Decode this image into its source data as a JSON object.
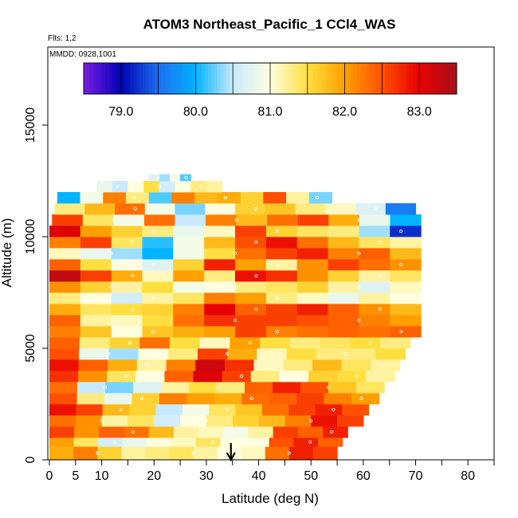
{
  "chart_data": {
    "type": "heatmap",
    "title": "ATOM3 Northeast_Pacific_1 CCl4_WAS",
    "flights_label": "Flts: 1,2",
    "dates_label": "MMDD: 0928,1001",
    "xlabel": "Latitude (deg N)",
    "ylabel": "Altitude (m)",
    "xlim": [
      -0.3,
      85
    ],
    "ylim": [
      0,
      18500
    ],
    "x_ticks": [
      0,
      5,
      10,
      20,
      30,
      40,
      50,
      60,
      70,
      80
    ],
    "x_minor_ticks": [
      15,
      25,
      35,
      45,
      55,
      65,
      75,
      85
    ],
    "y_ticks": [
      0,
      5000,
      10000,
      15000
    ],
    "colorbar": {
      "min": 78.5,
      "max": 83.5,
      "ticks": [
        79.0,
        80.0,
        81.0,
        82.0,
        83.0
      ],
      "boundaries": [
        79.5,
        80.5,
        81.5,
        82.5
      ],
      "colors": [
        "#7a1fe6",
        "#0000b4",
        "#1e6ef0",
        "#00b4ff",
        "#c8eaff",
        "#ffffe0",
        "#ffdf40",
        "#ffa000",
        "#ff5000",
        "#e80000",
        "#a8111e"
      ]
    },
    "bands": [
      {
        "alt": [
          0,
          600
        ],
        "lat": [
          0,
          55
        ],
        "values": [
          81.9,
          82.2,
          81.6,
          81.2,
          81.3,
          81.4,
          81.2,
          81.0,
          81.1,
          82.3,
          82.8,
          82.6
        ]
      },
      {
        "alt": [
          600,
          1000
        ],
        "lat": [
          0,
          56
        ],
        "values": [
          82.0,
          81.4,
          80.6,
          80.8,
          81.0,
          81.1,
          81.4,
          81.0,
          81.0,
          82.5,
          82.8,
          82.4
        ]
      },
      {
        "alt": [
          1000,
          1500
        ],
        "lat": [
          0,
          57
        ],
        "values": [
          82.6,
          82.1,
          82.4,
          82.3,
          81.8,
          81.2,
          81.1,
          80.9,
          81.2,
          82.6,
          82.4,
          82.8
        ]
      },
      {
        "alt": [
          1500,
          2000
        ],
        "lat": [
          0,
          60
        ],
        "values": [
          82.3,
          82.1,
          81.2,
          81.4,
          80.6,
          81.0,
          81.3,
          81.6,
          81.8,
          82.2,
          82.9,
          82.6
        ]
      },
      {
        "alt": [
          2000,
          2500
        ],
        "lat": [
          0,
          61
        ],
        "values": [
          82.9,
          82.6,
          81.8,
          81.6,
          80.5,
          80.9,
          81.4,
          81.7,
          82.3,
          82.6,
          82.8,
          82.5
        ]
      },
      {
        "alt": [
          2500,
          3000
        ],
        "lat": [
          0,
          63
        ],
        "values": [
          82.5,
          81.3,
          80.8,
          81.6,
          82.2,
          82.0,
          81.9,
          82.3,
          82.4,
          82.6,
          82.2,
          82.0
        ]
      },
      {
        "alt": [
          3000,
          3500
        ],
        "lat": [
          0,
          64
        ],
        "values": [
          82.3,
          80.5,
          80.3,
          80.7,
          81.2,
          81.5,
          81.3,
          82.4,
          82.8,
          82.5,
          81.7,
          81.4
        ]
      },
      {
        "alt": [
          3500,
          4000
        ],
        "lat": [
          0,
          66
        ],
        "values": [
          82.7,
          82.1,
          81.4,
          81.0,
          82.4,
          83.1,
          82.6,
          81.3,
          81.0,
          81.6,
          81.5,
          81.2
        ]
      },
      {
        "alt": [
          4000,
          4500
        ],
        "lat": [
          0,
          67
        ],
        "values": [
          82.9,
          82.4,
          81.9,
          81.2,
          82.2,
          83.2,
          82.7,
          81.1,
          81.3,
          81.8,
          81.4,
          81.2
        ]
      },
      {
        "alt": [
          4500,
          5000
        ],
        "lat": [
          0,
          68
        ],
        "values": [
          82.5,
          80.8,
          80.4,
          81.0,
          81.3,
          82.6,
          81.9,
          81.1,
          81.5,
          81.3,
          81.3,
          81.5
        ]
      },
      {
        "alt": [
          5000,
          5500
        ],
        "lat": [
          0,
          69
        ],
        "values": [
          82.4,
          81.3,
          81.6,
          82.3,
          81.5,
          81.1,
          82.0,
          81.5,
          81.3,
          81.4,
          81.5,
          81.3
        ]
      },
      {
        "alt": [
          5500,
          6000
        ],
        "lat": [
          0,
          71
        ],
        "values": [
          82.2,
          81.7,
          81.0,
          81.7,
          81.9,
          82.0,
          82.6,
          82.2,
          82.3,
          82.4,
          82.3,
          82.4
        ]
      },
      {
        "alt": [
          6000,
          6500
        ],
        "lat": [
          0,
          71
        ],
        "values": [
          82.4,
          81.2,
          81.1,
          81.5,
          82.3,
          82.7,
          82.6,
          82.6,
          82.5,
          82.4,
          82.2,
          82.0
        ]
      },
      {
        "alt": [
          6500,
          7000
        ],
        "lat": [
          0,
          71
        ],
        "values": [
          81.9,
          81.4,
          81.5,
          81.6,
          82.2,
          83.0,
          82.4,
          82.6,
          82.8,
          82.4,
          82.1,
          81.8
        ]
      },
      {
        "alt": [
          7000,
          7500
        ],
        "lat": [
          0,
          71
        ],
        "values": [
          81.3,
          81.0,
          80.6,
          81.2,
          81.4,
          82.2,
          82.0,
          81.3,
          81.1,
          80.8,
          81.2,
          81.0
        ]
      },
      {
        "alt": [
          7500,
          8000
        ],
        "lat": [
          0,
          71
        ],
        "values": [
          82.1,
          81.6,
          81.2,
          81.5,
          80.9,
          81.0,
          81.3,
          81.4,
          81.6,
          81.2,
          80.7,
          81.1
        ]
      },
      {
        "alt": [
          8000,
          8500
        ],
        "lat": [
          0,
          71
        ],
        "values": [
          83.3,
          82.6,
          81.9,
          81.1,
          82.0,
          81.3,
          82.9,
          82.7,
          82.1,
          81.6,
          81.2,
          81.4
        ]
      },
      {
        "alt": [
          8500,
          9000
        ],
        "lat": [
          0,
          71
        ],
        "values": [
          82.4,
          81.5,
          81.0,
          80.7,
          81.6,
          82.8,
          82.0,
          81.2,
          82.1,
          82.6,
          82.3,
          82.1
        ]
      },
      {
        "alt": [
          9000,
          9500
        ],
        "lat": [
          0,
          71
        ],
        "values": [
          81.1,
          80.8,
          80.4,
          80.0,
          80.9,
          81.5,
          82.3,
          82.6,
          82.8,
          82.2,
          82.4,
          81.8
        ]
      },
      {
        "alt": [
          9500,
          10000
        ],
        "lat": [
          0,
          71
        ],
        "values": [
          82.2,
          82.6,
          81.4,
          80.1,
          80.9,
          81.8,
          82.5,
          82.9,
          82.3,
          81.8,
          81.4,
          81.2
        ]
      },
      {
        "alt": [
          10000,
          10500
        ],
        "lat": [
          0,
          71
        ],
        "values": [
          83.1,
          82.0,
          81.6,
          81.3,
          80.8,
          81.1,
          82.6,
          81.6,
          81.4,
          81.3,
          80.4,
          79.2
        ]
      },
      {
        "alt": [
          10500,
          11000
        ],
        "lat": [
          0.5,
          71
        ],
        "values": [
          82.6,
          81.4,
          80.9,
          82.3,
          80.5,
          82.2,
          81.8,
          82.3,
          82.6,
          81.9,
          80.8,
          80.0
        ]
      },
      {
        "alt": [
          11000,
          11500
        ],
        "lat": [
          1,
          70
        ],
        "values": [
          81.3,
          81.8,
          82.3,
          80.9,
          80.3,
          81.0,
          81.6,
          81.7,
          81.3,
          81.1,
          80.7,
          79.6
        ]
      },
      {
        "alt": [
          11500,
          12000
        ],
        "lat": [
          1.5,
          54
        ],
        "values": [
          80.0,
          80.9,
          82.2,
          81.3,
          80.2,
          82.2,
          81.8,
          81.9,
          81.6,
          82.5,
          81.2,
          80.3
        ]
      },
      {
        "alt": [
          12000,
          12500
        ],
        "lat": [
          9,
          33
        ],
        "values": [
          80.8,
          80.5,
          81.0,
          81.5,
          80.6,
          81.0,
          81.3,
          81.2
        ]
      },
      {
        "alt": [
          12500,
          12800
        ],
        "lat": [
          19,
          27
        ],
        "values": [
          80.7,
          80.4,
          80.9,
          80.2
        ]
      }
    ],
    "annotation_arrow_lat": 34.7
  }
}
